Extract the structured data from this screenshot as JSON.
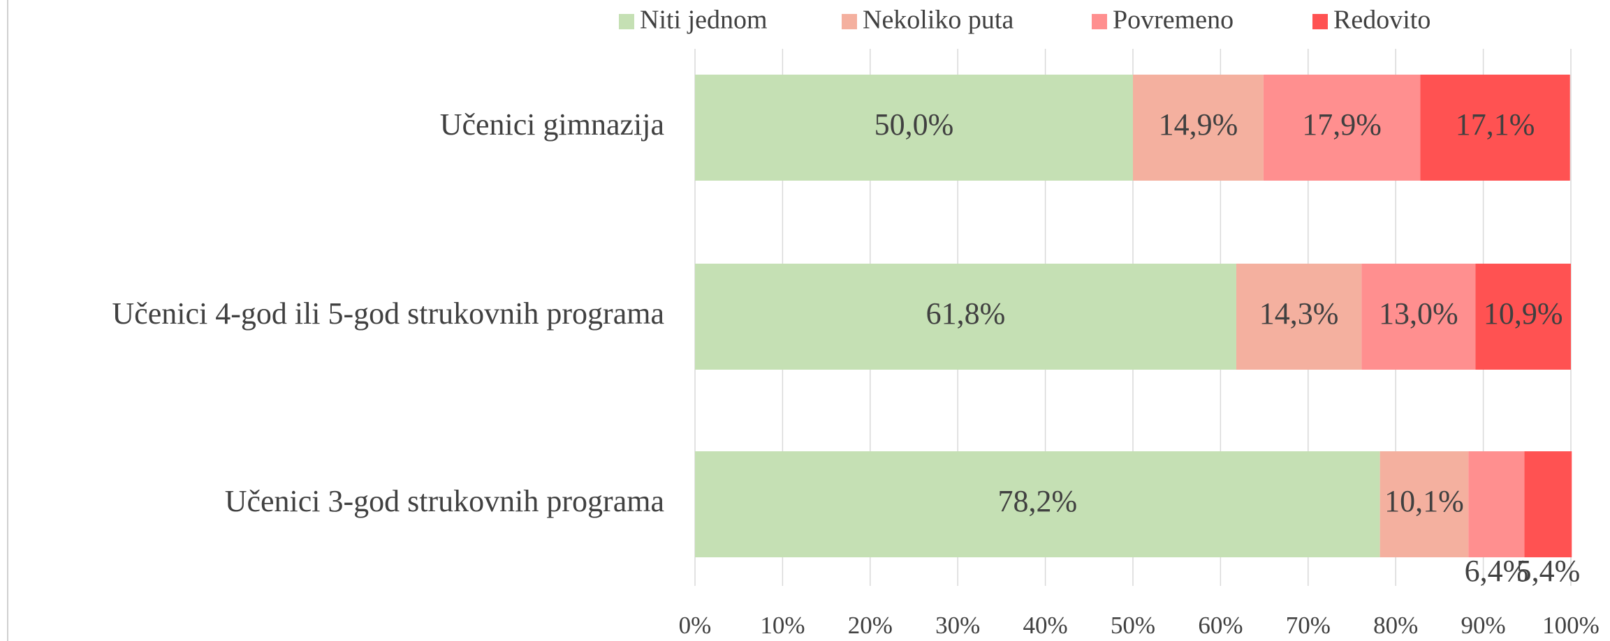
{
  "chart_data": {
    "type": "stacked-bar-horizontal",
    "categories": [
      "Učenici gimnazija",
      "Učenici 4-god ili 5-god strukovnih programa",
      "Učenici 3-god strukovnih programa"
    ],
    "series": [
      {
        "name": "Niti jednom",
        "color": "#c5e0b4",
        "values": [
          50.0,
          61.8,
          78.2
        ],
        "value_labels": [
          "50,0%",
          "61,8%",
          "78,2%"
        ]
      },
      {
        "name": "Nekoliko puta",
        "color": "#f4b09f",
        "values": [
          14.9,
          14.3,
          10.1
        ],
        "value_labels": [
          "14,9%",
          "14,3%",
          "10,1%"
        ]
      },
      {
        "name": "Povremeno",
        "color": "#ff8f8f",
        "values": [
          17.9,
          13.0,
          6.4
        ],
        "value_labels": [
          "17,9%",
          "13,0%",
          "6,4%"
        ]
      },
      {
        "name": "Redovito",
        "color": "#ff5252",
        "values": [
          17.1,
          10.9,
          5.4
        ],
        "value_labels": [
          "17,1%",
          "10,9%",
          "5,4%"
        ]
      }
    ],
    "xlim": [
      0,
      100
    ],
    "xticks": [
      {
        "value": 0,
        "label": "0%"
      },
      {
        "value": 10,
        "label": "10%"
      },
      {
        "value": 20,
        "label": "20%"
      },
      {
        "value": 30,
        "label": "30%"
      },
      {
        "value": 40,
        "label": "40%"
      },
      {
        "value": 50,
        "label": "50%"
      },
      {
        "value": 60,
        "label": "60%"
      },
      {
        "value": 70,
        "label": "70%"
      },
      {
        "value": 80,
        "label": "80%"
      },
      {
        "value": 90,
        "label": "90%"
      },
      {
        "value": 100,
        "label": "100%"
      }
    ],
    "grid": true,
    "legend": "top"
  }
}
